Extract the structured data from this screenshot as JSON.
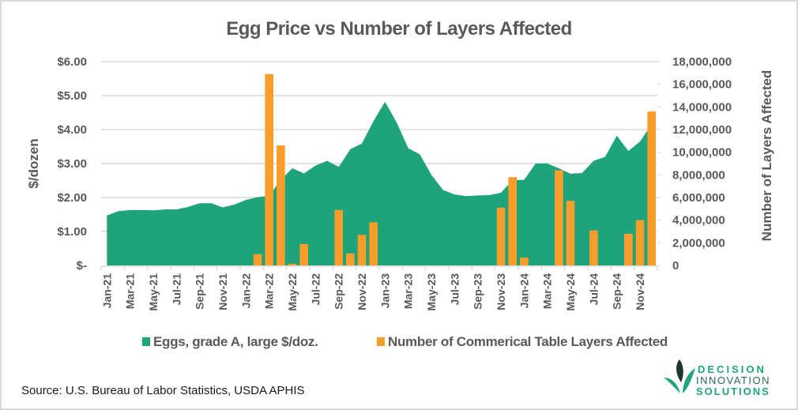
{
  "chart_data": {
    "type": "area+bar",
    "title": "Egg Price vs Number of Layers Affected",
    "categories": [
      "Jan-21",
      "Feb-21",
      "Mar-21",
      "Apr-21",
      "May-21",
      "Jun-21",
      "Jul-21",
      "Aug-21",
      "Sep-21",
      "Oct-21",
      "Nov-21",
      "Dec-21",
      "Jan-22",
      "Feb-22",
      "Mar-22",
      "Apr-22",
      "May-22",
      "Jun-22",
      "Jul-22",
      "Aug-22",
      "Sep-22",
      "Oct-22",
      "Nov-22",
      "Dec-22",
      "Jan-23",
      "Feb-23",
      "Mar-23",
      "Apr-23",
      "May-23",
      "Jun-23",
      "Jul-23",
      "Aug-23",
      "Sep-23",
      "Oct-23",
      "Nov-23",
      "Dec-23",
      "Jan-24",
      "Feb-24",
      "Mar-24",
      "Apr-24",
      "May-24",
      "Jun-24",
      "Jul-24",
      "Aug-24",
      "Sep-24",
      "Oct-24",
      "Nov-24",
      "Dec-24"
    ],
    "x_tick_labels": [
      "Jan-21",
      "Mar-21",
      "May-21",
      "Jul-21",
      "Sep-21",
      "Nov-21",
      "Jan-22",
      "Mar-22",
      "May-22",
      "Jul-22",
      "Sep-22",
      "Nov-22",
      "Jan-23",
      "Mar-23",
      "May-23",
      "Jul-23",
      "Sep-23",
      "Nov-23",
      "Jan-24",
      "Mar-24",
      "May-24",
      "Jul-24",
      "Sep-24",
      "Nov-24"
    ],
    "series": [
      {
        "name": "Eggs, grade A, large $/doz.",
        "type": "area",
        "axis": "left",
        "color": "#1fa37a",
        "values": [
          1.47,
          1.6,
          1.63,
          1.63,
          1.62,
          1.65,
          1.65,
          1.72,
          1.83,
          1.83,
          1.71,
          1.79,
          1.93,
          2.01,
          2.05,
          2.52,
          2.86,
          2.71,
          2.94,
          3.08,
          2.9,
          3.42,
          3.59,
          4.25,
          4.82,
          4.21,
          3.45,
          3.27,
          2.67,
          2.22,
          2.09,
          2.04,
          2.06,
          2.07,
          2.14,
          2.51,
          2.52,
          3.0,
          3.0,
          2.86,
          2.7,
          2.72,
          3.08,
          3.2,
          3.82,
          3.37,
          3.65,
          4.15
        ]
      },
      {
        "name": "Number of Commerical Table Layers Affected",
        "type": "bar",
        "axis": "right",
        "color": "#f99d2a",
        "values": [
          0,
          0,
          0,
          0,
          0,
          0,
          0,
          0,
          0,
          0,
          0,
          0,
          0,
          1000000,
          16900000,
          10600000,
          150000,
          1900000,
          0,
          0,
          4900000,
          1050000,
          2700000,
          3800000,
          0,
          0,
          0,
          0,
          0,
          0,
          0,
          0,
          0,
          0,
          5100000,
          7800000,
          700000,
          0,
          0,
          8400000,
          5700000,
          0,
          3100000,
          0,
          0,
          2800000,
          4000000,
          13600000
        ]
      }
    ],
    "y_left": {
      "label": "$/dozen",
      "range": [
        0,
        6
      ],
      "ticks": [
        0,
        1,
        2,
        3,
        4,
        5,
        6
      ],
      "tick_labels": [
        "$-",
        "$1.00",
        "$2.00",
        "$3.00",
        "$4.00",
        "$5.00",
        "$6.00"
      ]
    },
    "y_right": {
      "label": "Number of Layers Affected",
      "range": [
        0,
        18000000
      ],
      "ticks": [
        0,
        2000000,
        4000000,
        6000000,
        8000000,
        10000000,
        12000000,
        14000000,
        16000000,
        18000000
      ],
      "tick_labels": [
        "0",
        "2,000,000",
        "4,000,000",
        "6,000,000",
        "8,000,000",
        "10,000,000",
        "12,000,000",
        "14,000,000",
        "16,000,000",
        "18,000,000"
      ]
    },
    "grid": true,
    "legend_position": "bottom"
  },
  "footer": {
    "source": "Source: U.S. Bureau of Labor Statistics, USDA APHIS"
  },
  "logo": {
    "line1": "DECISION",
    "line2": "INNOVATION",
    "line3": "SOLUTIONS",
    "color_primary": "#1fa37a",
    "color_dark": "#1b3a2a"
  }
}
